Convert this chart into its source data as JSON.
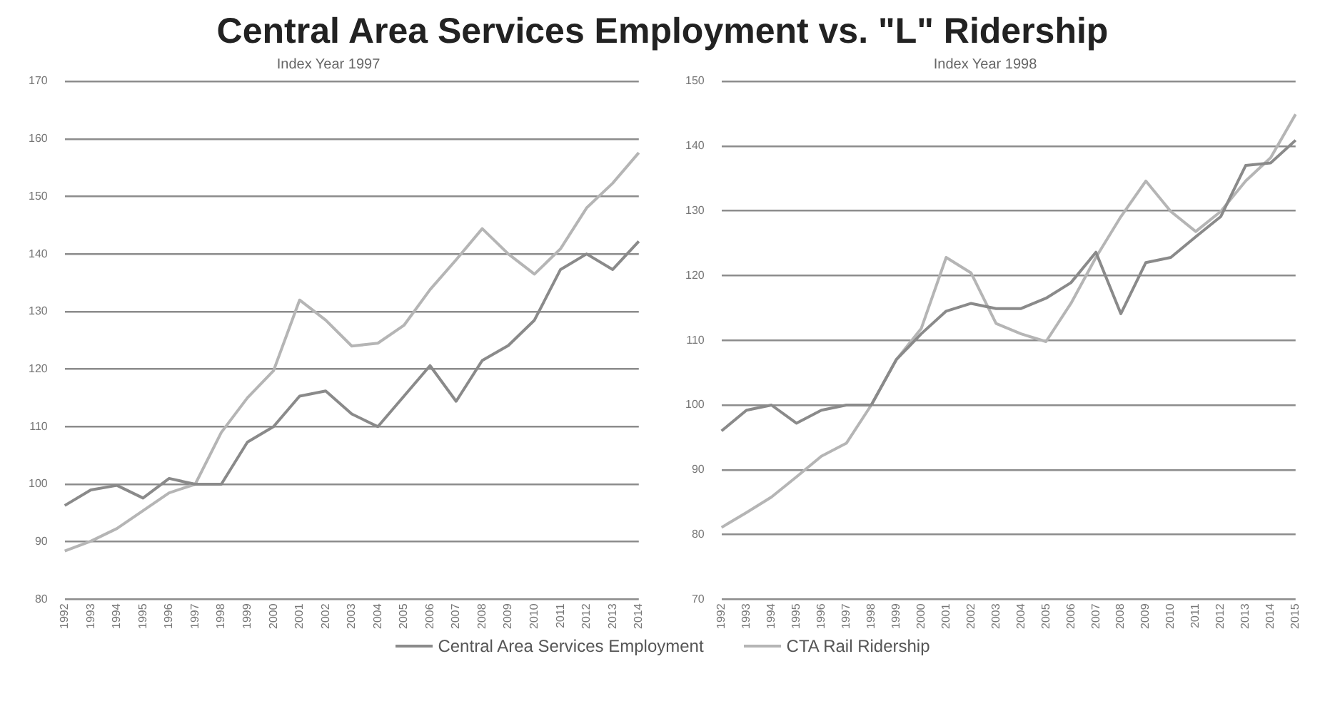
{
  "chart_data": [
    {
      "type": "line",
      "title": "Central Area Services Employment vs. \"L\" Ridership",
      "subtitle": "Index Year 1997",
      "categories": [
        "1992",
        "1993",
        "1994",
        "1995",
        "1996",
        "1997",
        "1998",
        "1999",
        "2000",
        "2001",
        "2002",
        "2003",
        "2004",
        "2005",
        "2006",
        "2007",
        "2008",
        "2009",
        "2010",
        "2011",
        "2012",
        "2013",
        "2014"
      ],
      "series": [
        {
          "name": "Central Area Services Employment",
          "color": "#8a8a8a",
          "values": [
            96.3,
            99,
            99.8,
            97.6,
            101,
            100,
            100,
            107.3,
            110,
            115.3,
            116.2,
            112.2,
            110,
            115.3,
            120.6,
            114.4,
            121.5,
            124.1,
            128.5,
            137.3,
            140,
            137.3,
            142.2
          ]
        },
        {
          "name": "CTA Rail Ridership",
          "color": "#b5b5b5",
          "values": [
            88.4,
            90.1,
            92.3,
            95.4,
            98.5,
            100,
            109,
            115,
            119.7,
            132,
            128.5,
            124,
            124.5,
            127.6,
            133.8,
            139,
            144.4,
            140,
            136.5,
            140.9,
            148,
            152.3,
            157.6
          ]
        }
      ],
      "ylim": [
        80,
        170
      ],
      "yticks": [
        80,
        90,
        100,
        110,
        120,
        130,
        140,
        150,
        160,
        170
      ],
      "grid": "y",
      "legend": "bottom"
    },
    {
      "type": "line",
      "subtitle": "Index Year 1998",
      "categories": [
        "1992",
        "1993",
        "1994",
        "1995",
        "1996",
        "1997",
        "1998",
        "1999",
        "2000",
        "2001",
        "2002",
        "2003",
        "2004",
        "2005",
        "2006",
        "2007",
        "2008",
        "2009",
        "2010",
        "2011",
        "2012",
        "2013",
        "2014",
        "2015"
      ],
      "series": [
        {
          "color": "#8a8a8a",
          "values": [
            96,
            99.2,
            100,
            97.2,
            99.2,
            100,
            100,
            107,
            111,
            114.5,
            115.7,
            114.9,
            114.9,
            116.5,
            118.9,
            123.6,
            114.1,
            122,
            122.8,
            126,
            129.1,
            137,
            137.4,
            140.9
          ]
        },
        {
          "color": "#b5b5b5",
          "values": [
            81.1,
            83.4,
            85.8,
            88.9,
            92.1,
            94.1,
            100,
            107,
            111.8,
            122.8,
            120.4,
            112.6,
            111,
            109.8,
            115.7,
            122.8,
            129.1,
            134.6,
            129.9,
            126.8,
            129.9,
            134.6,
            138.2,
            144.9
          ]
        }
      ],
      "ylim": [
        70,
        150
      ],
      "yticks": [
        70,
        80,
        90,
        100,
        110,
        120,
        130,
        140,
        150
      ],
      "grid": "y"
    }
  ]
}
